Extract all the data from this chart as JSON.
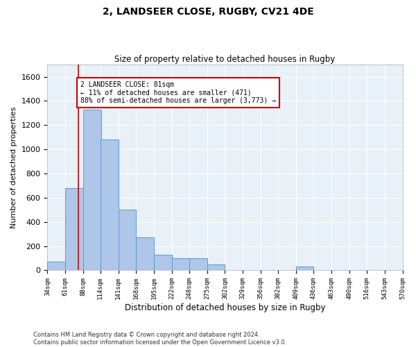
{
  "title": "2, LANDSEER CLOSE, RUGBY, CV21 4DE",
  "subtitle": "Size of property relative to detached houses in Rugby",
  "xlabel": "Distribution of detached houses by size in Rugby",
  "ylabel": "Number of detached properties",
  "footnote": "Contains HM Land Registry data © Crown copyright and database right 2024.\nContains public sector information licensed under the Open Government Licence v3.0.",
  "bin_labels": [
    "34sqm",
    "61sqm",
    "88sqm",
    "114sqm",
    "141sqm",
    "168sqm",
    "195sqm",
    "222sqm",
    "248sqm",
    "275sqm",
    "302sqm",
    "329sqm",
    "356sqm",
    "382sqm",
    "409sqm",
    "436sqm",
    "463sqm",
    "490sqm",
    "516sqm",
    "543sqm",
    "570sqm"
  ],
  "bar_heights": [
    70,
    680,
    1330,
    1080,
    500,
    270,
    130,
    100,
    100,
    50,
    0,
    0,
    0,
    0,
    30,
    0,
    0,
    0,
    0,
    0
  ],
  "bar_color": "#aec6e8",
  "bar_edge_color": "#5b9bd5",
  "property_line_x": 81,
  "property_line_color": "#cc0000",
  "annotation_text": "2 LANDSEER CLOSE: 81sqm\n← 11% of detached houses are smaller (471)\n88% of semi-detached houses are larger (3,773) →",
  "annotation_box_color": "#cc0000",
  "ylim": [
    0,
    1700
  ],
  "yticks": [
    0,
    200,
    400,
    600,
    800,
    1000,
    1200,
    1400,
    1600
  ],
  "background_color": "#e8f0f8",
  "grid_color": "#ffffff",
  "bin_width": 27,
  "title_fontsize": 10,
  "subtitle_fontsize": 8.5,
  "xlabel_fontsize": 8.5,
  "ylabel_fontsize": 8,
  "footnote_fontsize": 6,
  "annotation_fontsize": 7,
  "ytick_fontsize": 8,
  "xtick_fontsize": 6.5
}
